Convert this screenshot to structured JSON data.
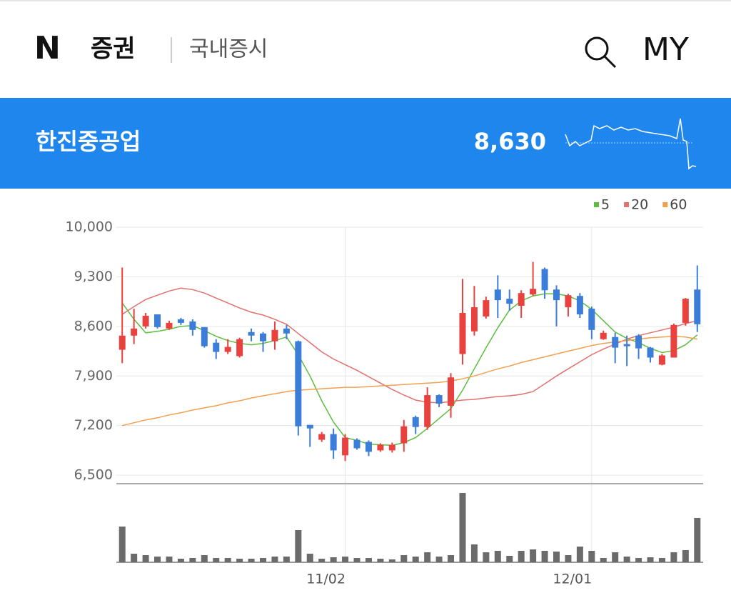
{
  "header": {
    "logo": "N",
    "section": "증권",
    "subsection": "국내증시",
    "my": "MY"
  },
  "stock": {
    "name": "한진중공업",
    "price": "8,630"
  },
  "chart_data": {
    "type": "candlestick",
    "categories": [
      null,
      null,
      null,
      null,
      null,
      null,
      null,
      null,
      null,
      null,
      null,
      null,
      null,
      null,
      null,
      null,
      null,
      null,
      null,
      "11/02",
      null,
      null,
      null,
      null,
      null,
      null,
      null,
      null,
      null,
      null,
      null,
      null,
      null,
      null,
      null,
      null,
      null,
      null,
      null,
      null,
      "12/01",
      null,
      null,
      null,
      null,
      null,
      null,
      null,
      null,
      null
    ],
    "open": [
      8270,
      8470,
      8600,
      8770,
      8570,
      8700,
      8670,
      8590,
      8370,
      8240,
      8180,
      8520,
      8500,
      8390,
      8570,
      8390,
      7210,
      7000,
      7080,
      6780,
      7000,
      6970,
      6850,
      6850,
      6950,
      7320,
      7180,
      7630,
      7480,
      8210,
      8530,
      8740,
      9120,
      8990,
      8890,
      9050,
      9410,
      9120,
      8870,
      9030,
      8850,
      8420,
      8450,
      8350,
      8470,
      8300,
      8060,
      8160,
      8650,
      9120
    ],
    "high": [
      9430,
      8850,
      8790,
      8770,
      8680,
      8720,
      8700,
      8590,
      8420,
      8420,
      8440,
      8570,
      8520,
      8670,
      8620,
      8400,
      7210,
      7110,
      7160,
      7080,
      7020,
      6990,
      6950,
      6960,
      7280,
      7340,
      7740,
      7640,
      7940,
      9270,
      9170,
      9020,
      9320,
      9120,
      9110,
      9510,
      9430,
      9180,
      9060,
      9070,
      8880,
      8540,
      8510,
      8470,
      8490,
      8310,
      8210,
      8640,
      9000,
      9460
    ],
    "low": [
      8080,
      8350,
      8570,
      8570,
      8550,
      8620,
      8470,
      8300,
      8140,
      8210,
      8160,
      8390,
      8240,
      8270,
      8420,
      7060,
      6900,
      6970,
      6730,
      6700,
      6860,
      6770,
      6830,
      6820,
      6830,
      7080,
      7140,
      7460,
      7310,
      8060,
      8470,
      8710,
      8720,
      8820,
      8720,
      9030,
      8990,
      8600,
      8740,
      8720,
      8420,
      8410,
      8080,
      8040,
      8140,
      8090,
      8050,
      8160,
      8610,
      8520
    ],
    "close": [
      8470,
      8570,
      8750,
      8590,
      8650,
      8650,
      8550,
      8320,
      8240,
      8310,
      8420,
      8470,
      8390,
      8550,
      8500,
      7190,
      7160,
      7080,
      6850,
      7030,
      6880,
      6830,
      6930,
      6930,
      7190,
      7180,
      7630,
      7510,
      7880,
      8790,
      8870,
      8970,
      8970,
      8920,
      9070,
      9130,
      9110,
      8970,
      9040,
      8770,
      8550,
      8510,
      8300,
      8320,
      8290,
      8160,
      8190,
      8620,
      8990,
      8630
    ],
    "up_color": "#e8413e",
    "down_color": "#3b7dd8",
    "series": [
      {
        "name": "5",
        "color": "#5cbd3e",
        "values": [
          8930,
          8700,
          8510,
          8530,
          8560,
          8600,
          8610,
          8540,
          8460,
          8400,
          8360,
          8340,
          8360,
          8400,
          8450,
          8200,
          7900,
          7550,
          7250,
          7030,
          6990,
          6940,
          6930,
          6920,
          6960,
          7030,
          7160,
          7300,
          7440,
          7700,
          8000,
          8300,
          8580,
          8830,
          8960,
          9030,
          9060,
          9060,
          9030,
          8960,
          8840,
          8680,
          8520,
          8430,
          8370,
          8290,
          8230,
          8260,
          8340,
          8480
        ]
      },
      {
        "name": "20",
        "color": "#e2706c",
        "values": [
          8770,
          8880,
          8980,
          9040,
          9100,
          9140,
          9120,
          9070,
          9000,
          8930,
          8860,
          8800,
          8760,
          8700,
          8630,
          8500,
          8370,
          8240,
          8140,
          8060,
          7980,
          7890,
          7800,
          7710,
          7630,
          7560,
          7530,
          7520,
          7540,
          7560,
          7570,
          7590,
          7610,
          7620,
          7640,
          7680,
          7790,
          7900,
          8000,
          8100,
          8200,
          8280,
          8350,
          8420,
          8470,
          8510,
          8550,
          8590,
          8640,
          8680
        ]
      },
      {
        "name": "60",
        "color": "#f0a050",
        "values": [
          7200,
          7240,
          7280,
          7310,
          7350,
          7380,
          7420,
          7450,
          7480,
          7520,
          7550,
          7590,
          7620,
          7650,
          7680,
          7700,
          7710,
          7720,
          7730,
          7740,
          7740,
          7750,
          7760,
          7770,
          7780,
          7790,
          7800,
          7810,
          7830,
          7860,
          7900,
          7950,
          8000,
          8040,
          8090,
          8130,
          8170,
          8210,
          8250,
          8290,
          8330,
          8360,
          8380,
          8400,
          8420,
          8440,
          8450,
          8460,
          8450,
          8420
        ]
      }
    ],
    "volume": [
      50,
      12,
      10,
      8,
      8,
      5,
      6,
      10,
      6,
      6,
      5,
      5,
      6,
      8,
      8,
      45,
      12,
      5,
      7,
      8,
      6,
      6,
      5,
      4,
      10,
      8,
      14,
      8,
      10,
      97,
      25,
      14,
      16,
      9,
      16,
      18,
      16,
      15,
      10,
      22,
      16,
      6,
      14,
      8,
      6,
      7,
      6,
      14,
      17,
      62
    ],
    "volume_color": "#6b6b6b",
    "ylim": [
      6380,
      10000
    ],
    "yticks": [
      {
        "value": 6500,
        "label": "6,500"
      },
      {
        "value": 7200,
        "label": "7,200"
      },
      {
        "value": 7900,
        "label": "7,900"
      },
      {
        "value": 8600,
        "label": "8,600"
      },
      {
        "value": 9300,
        "label": "9,300"
      },
      {
        "value": 10000,
        "label": "10,000"
      }
    ],
    "grid": true
  }
}
